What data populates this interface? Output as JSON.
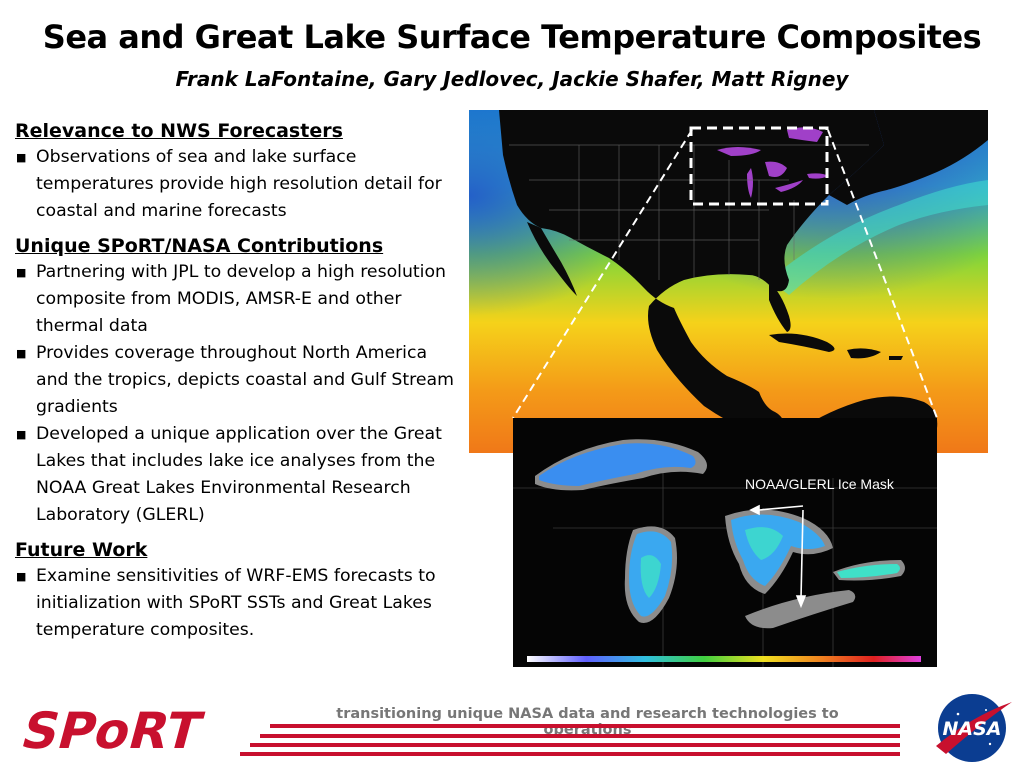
{
  "header": {
    "title": "Sea and Great Lake Surface Temperature Composites",
    "authors": "Frank LaFontaine, Gary Jedlovec, Jackie Shafer, Matt Rigney"
  },
  "sections": [
    {
      "heading": "Relevance to NWS Forecasters",
      "bullets": [
        "Observations of sea and lake surface temperatures provide high resolution detail for coastal and marine forecasts"
      ]
    },
    {
      "heading": "Unique SPoRT/NASA Contributions",
      "bullets": [
        "Partnering with JPL to develop a high resolution composite from MODIS, AMSR-E and other thermal data",
        "Provides coverage throughout North America and the tropics, depicts coastal and Gulf Stream gradients",
        "Developed a unique application over the Great Lakes that includes lake ice analyses from the NOAA Great Lakes Environmental Research Laboratory (GLERL)"
      ]
    },
    {
      "heading": "Future Work",
      "bullets": [
        "Examine sensitivities of WRF-EMS forecasts to initialization with SPoRT SSTs and Great Lakes temperature composites."
      ]
    }
  ],
  "figure": {
    "ice_mask_label": "NOAA/GLERL Ice Mask"
  },
  "footer": {
    "tagline": "transitioning unique NASA data and research technologies to operations",
    "sport_logo_text": "SPoRT",
    "nasa_logo_text": "NASA"
  },
  "colors": {
    "accent_red": "#c8102e",
    "nasa_blue": "#0b3d91",
    "land": "#0a0a0a",
    "ice": "#8c8c8c"
  }
}
